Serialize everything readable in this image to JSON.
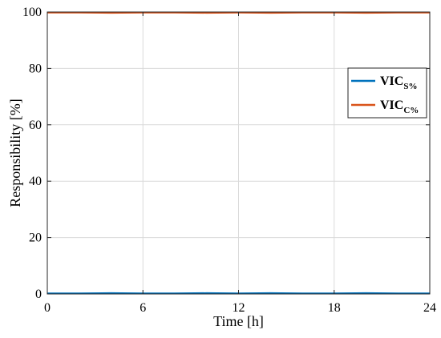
{
  "chart_data": {
    "type": "line",
    "xlabel": "Time [h]",
    "ylabel": "Responsibility [%]",
    "xlim": [
      0,
      24
    ],
    "ylim": [
      0,
      100
    ],
    "xticks": [
      "0",
      "6",
      "12",
      "18",
      "24"
    ],
    "yticks": [
      "0",
      "20",
      "40",
      "60",
      "80",
      "100"
    ],
    "grid": true,
    "legend_position": "right",
    "x": [
      0,
      2,
      4,
      6,
      8,
      10,
      12,
      14,
      16,
      18,
      20,
      22,
      24
    ],
    "series": [
      {
        "name": "VIC",
        "name_sub": "S%",
        "color": "#0072BD",
        "values": [
          0.2,
          0.2,
          0.3,
          0.2,
          0.2,
          0.3,
          0.2,
          0.3,
          0.2,
          0.2,
          0.3,
          0.2,
          0.2
        ]
      },
      {
        "name": "VIC",
        "name_sub": "C%",
        "color": "#D95319",
        "values": [
          99.8,
          99.8,
          99.7,
          99.8,
          99.8,
          99.7,
          99.8,
          99.7,
          99.8,
          99.8,
          99.7,
          99.8,
          99.8
        ]
      }
    ]
  }
}
